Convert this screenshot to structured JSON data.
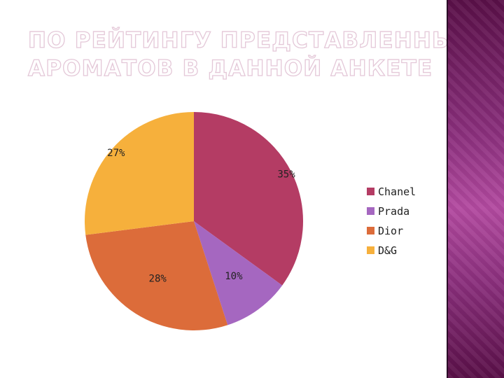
{
  "title": {
    "line1": "ПО РЕЙТИНГУ ПРЕДСТАВЛЕННЫХ",
    "line2": "АРОМАТОВ В ДАННОЙ АНКЕТЕ"
  },
  "chart_data": {
    "type": "pie",
    "categories": [
      "Chanel",
      "Prada",
      "Dior",
      "D&G"
    ],
    "values": [
      35,
      10,
      28,
      27
    ],
    "labels": [
      "35%",
      "10%",
      "28%",
      "27%"
    ],
    "colors": [
      "#b43c64",
      "#a567c0",
      "#dc6c3a",
      "#f6b03c"
    ],
    "legend": "right"
  }
}
